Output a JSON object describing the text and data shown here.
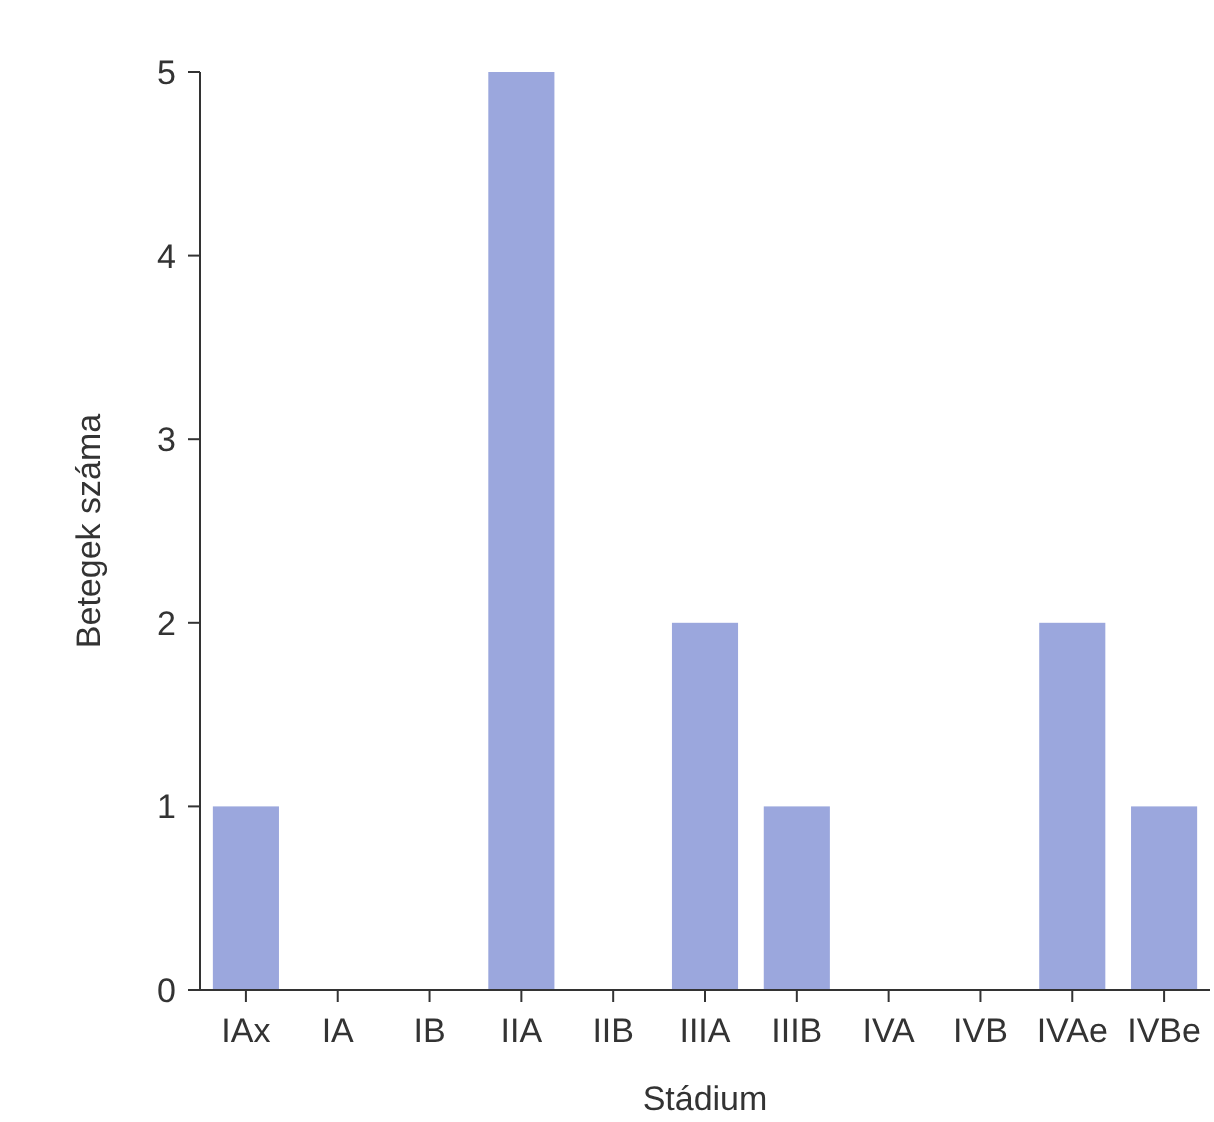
{
  "chart_data": {
    "type": "bar",
    "xlabel": "Stádium",
    "ylabel": "Betegek száma",
    "categories": [
      "IAx",
      "IA",
      "IB",
      "IIA",
      "IIB",
      "IIIA",
      "IIIB",
      "IVA",
      "IVB",
      "IVAe",
      "IVBe"
    ],
    "values": [
      1,
      0,
      0,
      5,
      0,
      2,
      1,
      0,
      0,
      2,
      1
    ],
    "color": "#9ba7dd",
    "ylim": [
      0,
      5
    ],
    "yticks": [
      0,
      1,
      2,
      3,
      4,
      5
    ],
    "grid": false
  }
}
